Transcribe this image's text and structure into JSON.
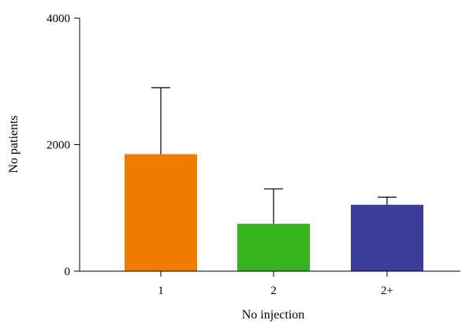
{
  "chart_data": {
    "type": "bar",
    "title": "",
    "xlabel": "No injection",
    "ylabel": "No patients",
    "categories": [
      "1",
      "2",
      "2+"
    ],
    "values": [
      1850,
      750,
      1050
    ],
    "error_upper": [
      2900,
      1300,
      1170
    ],
    "colors": [
      "#F07D00",
      "#37B31E",
      "#3C3C9B"
    ],
    "ylim": [
      0,
      4000
    ],
    "yticks": [
      0,
      2000,
      4000
    ],
    "ytick_labels": [
      "0",
      "2000",
      "4000"
    ],
    "grid": false,
    "legend": "none"
  }
}
